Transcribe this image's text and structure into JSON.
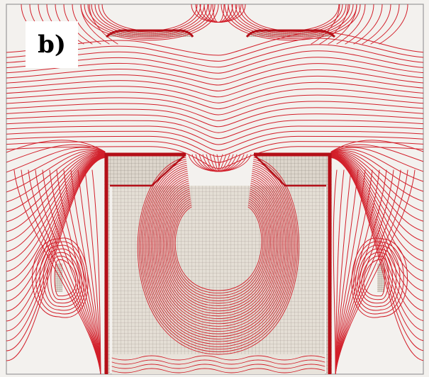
{
  "panel": {
    "label": "b)"
  },
  "colors": {
    "background": "#f3f1ee",
    "field_line": "#d21f2a",
    "field_line_dense": "#b40f18",
    "mesh": "#8c8279",
    "mesh_fill": "#ddd6cc",
    "frame": "#9a9a9a"
  }
}
